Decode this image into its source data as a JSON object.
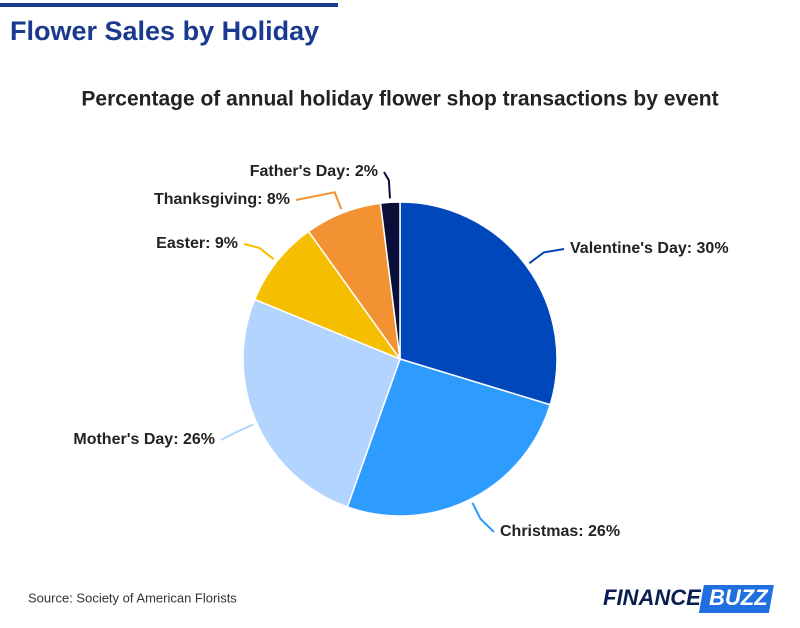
{
  "chart_data": {
    "type": "pie",
    "title": "Flower Sales by Holiday",
    "subtitle": "Percentage of annual holiday flower shop transactions by event",
    "values": [
      30,
      26,
      26,
      9,
      8,
      2
    ],
    "value_labels": [
      "Valentine's Day: 30%",
      "Christmas: 26%",
      "Mother's Day: 26%",
      "Easter: 9%",
      "Thanksgiving: 8%",
      "Father's Day: 2%"
    ],
    "colors": [
      "#0047bb",
      "#2e9bff",
      "#b3d4ff",
      "#f5be00",
      "#f39233",
      "#0a0f3a"
    ]
  },
  "source": "Source: Society of American Florists",
  "logo": {
    "left": "FINANCE",
    "right": "BUZZ"
  }
}
